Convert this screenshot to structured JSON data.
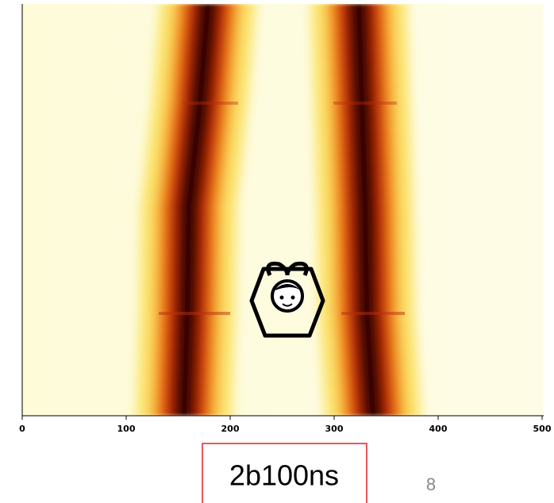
{
  "heatmap": {
    "x_axis": {
      "tick_labels": [
        "0",
        "100",
        "200",
        "300",
        "400",
        "500"
      ]
    }
  },
  "caption": "2b100ns",
  "page_number": "8"
}
